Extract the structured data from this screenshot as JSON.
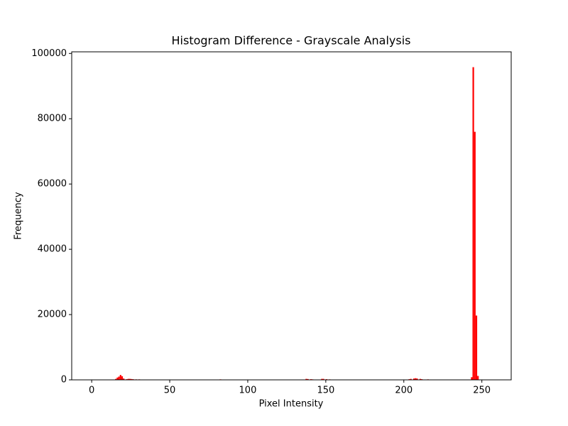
{
  "chart_data": {
    "type": "bar",
    "title": "Histogram Difference - Grayscale Analysis",
    "x_label": "Pixel Intensity",
    "y_label": "Frequency",
    "color": "#ff0000",
    "x": [
      15,
      16,
      17,
      18,
      19,
      20,
      22,
      23,
      24,
      25,
      26,
      28,
      30,
      34,
      40,
      60,
      75,
      82,
      84,
      122,
      137,
      138,
      140,
      141,
      147,
      148,
      150,
      152,
      168,
      203,
      204,
      206,
      207,
      208,
      210,
      211,
      215,
      243,
      244,
      245,
      246,
      247
    ],
    "values": [
      300,
      700,
      1000,
      1500,
      1100,
      400,
      200,
      300,
      300,
      250,
      200,
      150,
      150,
      100,
      100,
      80,
      100,
      150,
      100,
      100,
      300,
      250,
      200,
      150,
      300,
      300,
      200,
      150,
      100,
      200,
      300,
      400,
      500,
      400,
      300,
      200,
      150,
      800,
      95800,
      76000,
      19700,
      1200
    ],
    "xlim": [
      -12.8,
      268.8
    ],
    "xticks": [
      0,
      50,
      100,
      150,
      200,
      250
    ],
    "ylim": [
      0,
      100500
    ],
    "yticks": [
      0,
      20000,
      40000,
      60000,
      80000,
      100000
    ]
  }
}
